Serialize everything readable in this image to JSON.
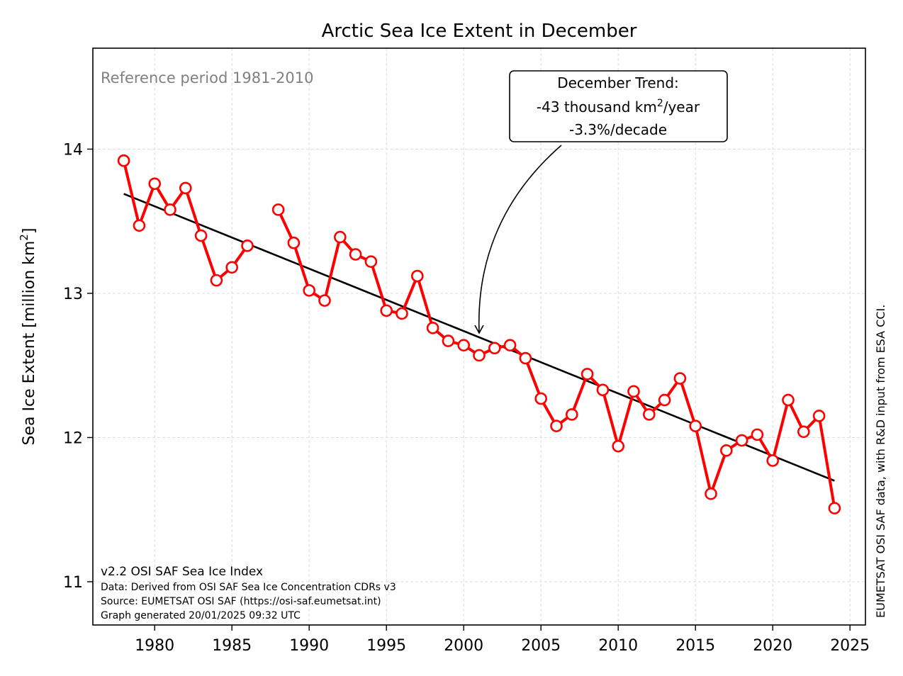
{
  "chart_data": {
    "type": "line",
    "title": "Arctic Sea Ice Extent in December",
    "ylabel_main": "Sea Ice Extent [million km",
    "ylabel_sup": "2",
    "ylabel_end": "]",
    "xlim": [
      1976,
      2026
    ],
    "ylim": [
      10.7,
      14.7
    ],
    "xticks": [
      1980,
      1985,
      1990,
      1995,
      2000,
      2005,
      2010,
      2015,
      2020,
      2025
    ],
    "yticks": [
      11,
      12,
      13,
      14
    ],
    "grid": true,
    "series": [
      {
        "color": "#ff0000",
        "marker": "open-circle",
        "x": [
          1978,
          1979,
          1980,
          1981,
          1982,
          1983,
          1984,
          1985,
          1986,
          1988,
          1989,
          1990,
          1991,
          1992,
          1993,
          1994,
          1995,
          1996,
          1997,
          1998,
          1999,
          2000,
          2001,
          2002,
          2003,
          2004,
          2005,
          2006,
          2007,
          2008,
          2009,
          2010,
          2011,
          2012,
          2013,
          2014,
          2015,
          2016,
          2017,
          2018,
          2019,
          2020,
          2021,
          2022,
          2023,
          2024
        ],
        "y": [
          13.92,
          13.47,
          13.76,
          13.58,
          13.73,
          13.4,
          13.09,
          13.18,
          13.33,
          13.58,
          13.35,
          13.02,
          12.95,
          13.39,
          13.27,
          13.22,
          12.88,
          12.86,
          13.12,
          12.76,
          12.67,
          12.64,
          12.57,
          12.62,
          12.64,
          12.55,
          12.27,
          12.08,
          12.16,
          12.44,
          12.33,
          11.94,
          12.32,
          12.16,
          12.26,
          12.41,
          12.08,
          11.61,
          11.91,
          11.98,
          12.02,
          11.84,
          12.26,
          12.04,
          12.15,
          11.51
        ]
      },
      {
        "type": "trend",
        "color": "#000000",
        "x": [
          1978,
          2024
        ],
        "y": [
          13.69,
          11.7
        ]
      }
    ],
    "reference_text": "Reference period 1981-2010",
    "trend_box": {
      "line1": "December Trend:",
      "line2_pre": "-43 thousand km",
      "line2_sup": "2",
      "line2_post": "/year",
      "line3": "-3.3%/decade",
      "arrow_target": [
        2001,
        12.73
      ]
    },
    "footer_lines": [
      "v2.2 OSI SAF Sea Ice Index",
      "Data: Derived from OSI SAF Sea Ice Concentration CDRs v3",
      "Source: EUMETSAT OSI SAF (https://osi-saf.eumetsat.int)",
      "Graph generated 20/01/2025 09:32 UTC"
    ],
    "side_note": "EUMETSAT OSI SAF data, with R&D input from ESA CCI."
  }
}
